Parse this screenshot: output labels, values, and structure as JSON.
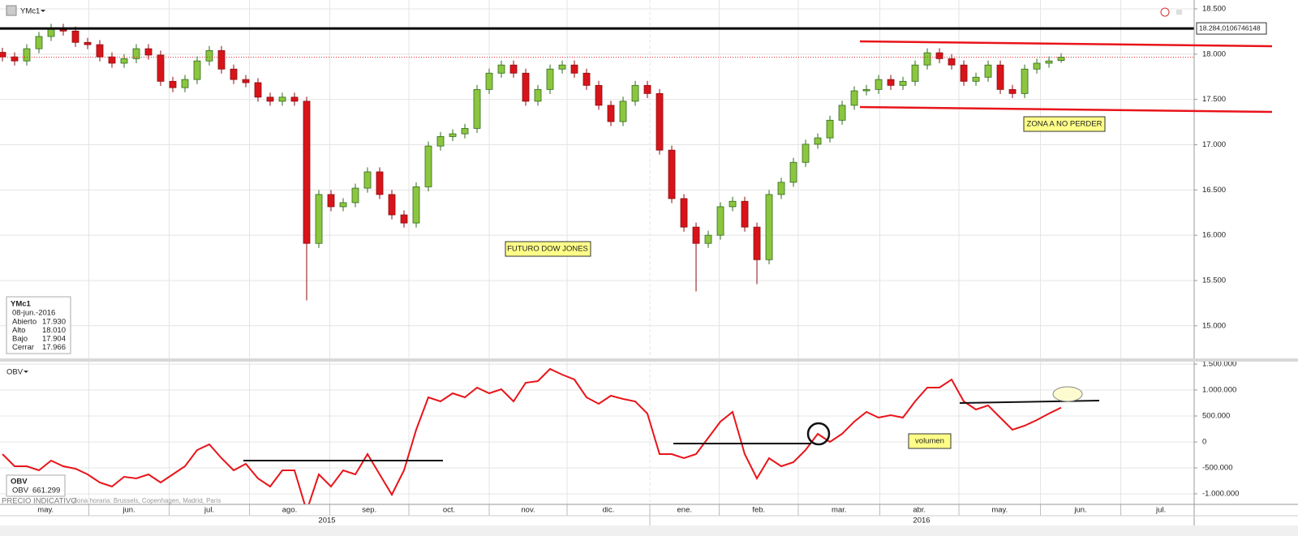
{
  "toolbar": {
    "symbol": "YMc1"
  },
  "chart_data": [
    {
      "type": "candlestick",
      "up_color": "#8cc63f",
      "down_color": "#d8141a",
      "xlim": [
        -0.2,
        97.93
      ],
      "ylim": [
        14640,
        18598
      ],
      "yticks": [
        {
          "value": 18500,
          "label": "18.500"
        },
        {
          "value": 18000,
          "label": "18.000"
        },
        {
          "value": 17500,
          "label": "17.500"
        },
        {
          "value": 17000,
          "label": "17.000"
        },
        {
          "value": 16500,
          "label": "16.500"
        },
        {
          "value": 16000,
          "label": "16.000"
        },
        {
          "value": 15500,
          "label": "15.500"
        },
        {
          "value": 15000,
          "label": "15.000"
        }
      ],
      "grid": true,
      "price_line": {
        "value": 18284.0106746148,
        "label": "18.284,0106746148"
      },
      "annotations": [
        "FUTURO DOW JONES",
        "ZONA A NO PERDER"
      ],
      "open": [
        18020,
        17970,
        17925,
        18060,
        18195,
        18285,
        18255,
        18130,
        18105,
        17970,
        17900,
        17950,
        18060,
        17990,
        17700,
        17630,
        17720,
        17925,
        18040,
        17835,
        17720,
        17685,
        17525,
        17480,
        17525,
        17480,
        15910,
        16450,
        16315,
        16360,
        16520,
        16700,
        16450,
        16225,
        16135,
        16535,
        16985,
        17090,
        17120,
        17180,
        17610,
        17790,
        17880,
        17790,
        17480,
        17610,
        17835,
        17880,
        17790,
        17655,
        17435,
        17255,
        17480,
        17655,
        17565,
        16940,
        16405,
        16090,
        15910,
        16000,
        16315,
        16375,
        16090,
        15730,
        16450,
        16585,
        16805,
        17005,
        17075,
        17270,
        17435,
        17595,
        17610,
        17720,
        17655,
        17700,
        17880,
        18015,
        17950,
        17880,
        17700,
        17745,
        17880,
        17610,
        17565,
        17835,
        17900,
        17930
      ],
      "high": [
        18070,
        18020,
        18110,
        18245,
        18335,
        18335,
        18305,
        18180,
        18155,
        18020,
        18000,
        18110,
        18110,
        18040,
        17750,
        17770,
        17975,
        18090,
        18090,
        17885,
        17770,
        17735,
        17575,
        17575,
        17575,
        17530,
        16500,
        16500,
        16410,
        16570,
        16750,
        16750,
        16500,
        16275,
        16585,
        17035,
        17140,
        17170,
        17230,
        17660,
        17840,
        17930,
        17930,
        17840,
        17660,
        17885,
        17930,
        17930,
        17840,
        17705,
        17485,
        17530,
        17705,
        17705,
        17615,
        16990,
        16455,
        16140,
        16050,
        16365,
        16425,
        16425,
        16140,
        16500,
        16635,
        16855,
        17055,
        17125,
        17320,
        17485,
        17645,
        17660,
        17770,
        17770,
        17750,
        17930,
        18065,
        18065,
        18000,
        17930,
        17795,
        17930,
        17930,
        17660,
        17885,
        17950,
        17975,
        18010
      ],
      "low": [
        17920,
        17875,
        17875,
        18010,
        18145,
        18205,
        18080,
        18055,
        17920,
        17850,
        17850,
        17900,
        17940,
        17650,
        17580,
        17580,
        17670,
        17875,
        17785,
        17670,
        17635,
        17475,
        17430,
        17430,
        17430,
        15280,
        15860,
        16265,
        16265,
        16310,
        16470,
        16400,
        16175,
        16085,
        16085,
        16485,
        16935,
        17040,
        17070,
        17130,
        17560,
        17740,
        17740,
        17430,
        17430,
        17560,
        17785,
        17740,
        17605,
        17385,
        17205,
        17205,
        17430,
        17515,
        16890,
        16355,
        16040,
        15380,
        15860,
        15950,
        16265,
        16040,
        15460,
        15680,
        16400,
        16535,
        16755,
        16955,
        17025,
        17220,
        17385,
        17545,
        17560,
        17605,
        17605,
        17650,
        17830,
        17900,
        17830,
        17650,
        17650,
        17695,
        17560,
        17515,
        17515,
        17785,
        17850,
        17904
      ],
      "close": [
        17970,
        17925,
        18060,
        18195,
        18285,
        18255,
        18130,
        18105,
        17970,
        17900,
        17950,
        18060,
        17990,
        17700,
        17630,
        17720,
        17925,
        18040,
        17835,
        17720,
        17685,
        17525,
        17480,
        17525,
        17480,
        15910,
        16450,
        16315,
        16360,
        16520,
        16700,
        16450,
        16225,
        16135,
        16535,
        16985,
        17090,
        17120,
        17180,
        17610,
        17790,
        17880,
        17790,
        17480,
        17610,
        17835,
        17880,
        17790,
        17655,
        17435,
        17255,
        17480,
        17655,
        17565,
        16940,
        16405,
        16090,
        15910,
        16000,
        16315,
        16375,
        16090,
        15730,
        16450,
        16585,
        16805,
        17005,
        17075,
        17270,
        17435,
        17595,
        17610,
        17720,
        17655,
        17700,
        17880,
        18015,
        17950,
        17880,
        17700,
        17745,
        17880,
        17610,
        17565,
        17835,
        17900,
        17925,
        17966
      ]
    },
    {
      "type": "line",
      "title": "OBV",
      "xlim": [
        -0.2,
        97.93
      ],
      "ylim": [
        -1203000,
        1547000
      ],
      "yticks": [
        {
          "value": 1500000,
          "label": "1.500.000"
        },
        {
          "value": 1000000,
          "label": "1.000.000"
        },
        {
          "value": 500000,
          "label": "500.000"
        },
        0,
        {
          "value": -500000,
          "label": "-500.000"
        },
        {
          "value": -1000000,
          "label": "-1.000.000"
        }
      ],
      "grid": true,
      "annotations": [
        "volumen"
      ],
      "value_label": "661.299",
      "series": [
        {
          "name": "OBV",
          "color": "#e8141a",
          "values": [
            -234000,
            -469000,
            -469000,
            -547000,
            -359000,
            -469000,
            -516000,
            -625000,
            -781000,
            -859000,
            -672000,
            -703000,
            -625000,
            -781000,
            -625000,
            -469000,
            -156000,
            -47000,
            -313000,
            -547000,
            -422000,
            -703000,
            -859000,
            -547000,
            -547000,
            -1328000,
            -625000,
            -859000,
            -547000,
            -625000,
            -234000,
            -625000,
            -1016000,
            -547000,
            234000,
            859000,
            781000,
            938000,
            859000,
            1047000,
            938000,
            1016000,
            781000,
            1141000,
            1172000,
            1406000,
            1297000,
            1203000,
            859000,
            734000,
            891000,
            828000,
            781000,
            547000,
            -234000,
            -234000,
            -313000,
            -234000,
            78000,
            391000,
            578000,
            -234000,
            -703000,
            -313000,
            -469000,
            -391000,
            -156000,
            156000,
            0,
            156000,
            391000,
            578000,
            469000,
            516000,
            469000,
            781000,
            1047000,
            1047000,
            1203000,
            781000,
            625000,
            703000,
            469000,
            234000,
            313000,
            422000,
            547000,
            661299
          ]
        }
      ]
    }
  ],
  "x_axis": {
    "months": [
      {
        "value": 0,
        "label": "may."
      },
      {
        "value": 7.1,
        "label": "jun."
      },
      {
        "value": 13.7,
        "label": "jul."
      },
      {
        "value": 20.3,
        "label": "ago."
      },
      {
        "value": 26.9,
        "label": "sep."
      },
      {
        "value": 33.4,
        "label": "oct."
      },
      {
        "value": 40,
        "label": "nov."
      },
      {
        "value": 46.4,
        "label": "dic."
      },
      {
        "value": 53.2,
        "label": "ene."
      },
      {
        "value": 58.9,
        "label": "feb."
      },
      {
        "value": 65.4,
        "label": "mar."
      },
      {
        "value": 72.1,
        "label": "abr."
      },
      {
        "value": 78.6,
        "label": "may."
      },
      {
        "value": 85.3,
        "label": "jun."
      },
      {
        "value": 91.9,
        "label": "jul."
      }
    ],
    "years": [
      "2015",
      "2016"
    ]
  },
  "info_box": {
    "title": "YMc1",
    "date": "08-jun.-2016",
    "rows": [
      {
        "name": "Abierto",
        "value": "17.930"
      },
      {
        "name": "Alto",
        "value": "18.010"
      },
      {
        "name": "Bajo",
        "value": "17.904"
      },
      {
        "name": "Cerrar",
        "value": "17.966"
      }
    ]
  },
  "footer": {
    "notice": "PRECIO INDICATIVO",
    "timezone": "Zona horaria: Brussels, Copenhagen, Madrid, Paris"
  }
}
